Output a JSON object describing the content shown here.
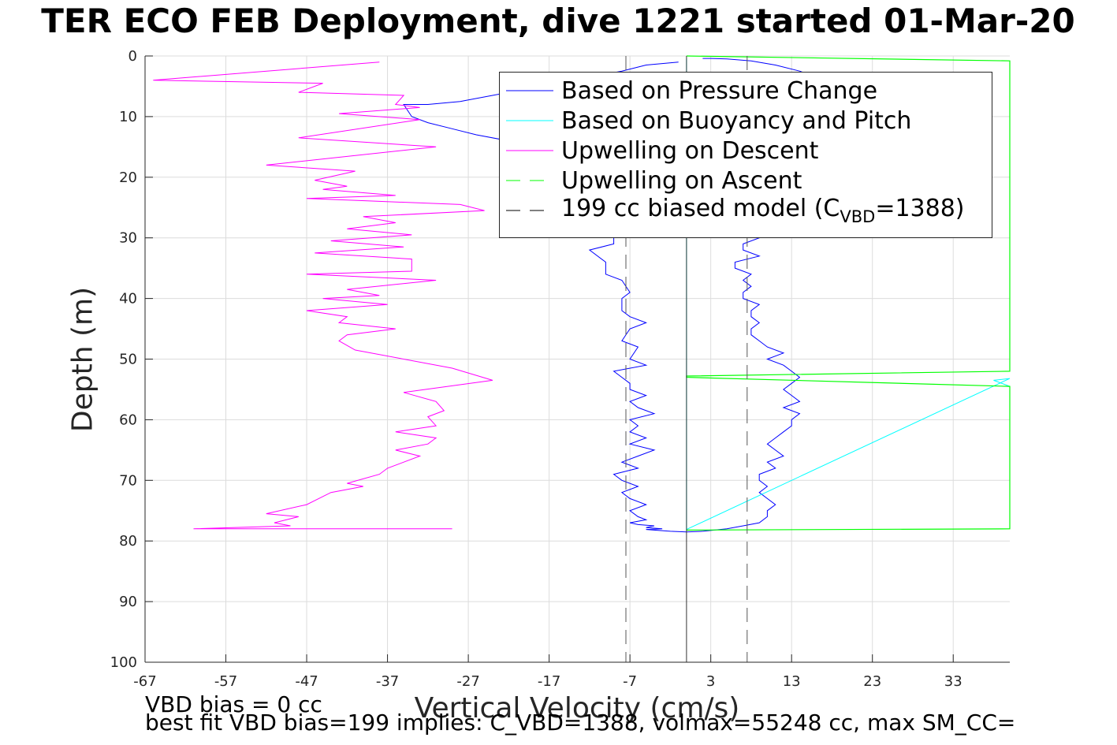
{
  "title": "TER ECO FEB Deployment, dive 1221 started 01-Mar-20",
  "footer_lines": [
    "VBD bias = 0 cc",
    "best fit VBD bias=199 implies: C_VBD=1388, volmax=55248 cc, max SM_CC="
  ],
  "colors": {
    "pressure": "#0000ff",
    "buoyancy": "#00ffff",
    "descent": "#ff00ff",
    "ascent": "#00ff00",
    "model": "#000000"
  },
  "chart_data": {
    "type": "line",
    "title": "TER ECO FEB Deployment, dive 1221 started 01-Mar-20",
    "xlabel": "Vertical Velocity (cm/s)",
    "ylabel": "Depth (m)",
    "xlim": [
      -67,
      40
    ],
    "ylim": [
      100,
      0
    ],
    "y_reversed": true,
    "xticks": [
      -67,
      -57,
      -47,
      -37,
      -27,
      -17,
      -7,
      3,
      13,
      23,
      33
    ],
    "yticks": [
      0,
      10,
      20,
      30,
      40,
      50,
      60,
      70,
      80,
      90,
      100
    ],
    "grid": true,
    "legend_position": "top-right",
    "legend": [
      {
        "id": "pressure",
        "prefix": "Based on Pressure Change",
        "style": "solid"
      },
      {
        "id": "buoyancy",
        "prefix": "Based on Buoyancy and Pitch",
        "style": "solid"
      },
      {
        "id": "descent",
        "prefix": "Upwelling on Descent",
        "style": "solid"
      },
      {
        "id": "ascent",
        "prefix": "Upwelling on Ascent",
        "style": "dashed"
      },
      {
        "id": "model",
        "prefix": "199 cc biased model (C",
        "sub": "VBD",
        "suffix": "=1388)",
        "style": "dashed"
      }
    ],
    "series": [
      {
        "id": "pressure",
        "name": "Based on Pressure Change",
        "x": [
          -1,
          -5,
          -8,
          -12,
          -16,
          -20,
          -24,
          -28,
          -32,
          -35,
          -34,
          -32,
          -29,
          -26,
          -22,
          -18,
          -14,
          -11,
          -9,
          -9,
          -12,
          -10,
          -10,
          -8,
          -7,
          -8,
          -8,
          -7,
          -5,
          -7,
          -8,
          -6,
          -7,
          -5,
          -9,
          -8,
          -7,
          -7,
          -5,
          -7,
          -6,
          -4,
          -7,
          -6,
          -7,
          -5,
          -7,
          -4,
          -6,
          -8,
          -6,
          -9,
          -8,
          -6,
          -8,
          -7,
          -5,
          -7,
          -6,
          -5,
          -7,
          -6,
          -4,
          -5,
          -3,
          -5,
          -3,
          -2,
          0,
          2
        ],
        "y": [
          1,
          1.5,
          2.5,
          3.5,
          4.5,
          5.5,
          6.5,
          7.5,
          8,
          8,
          10,
          11,
          12,
          13,
          14,
          15,
          20,
          25,
          28,
          31,
          32,
          34,
          36,
          37,
          39,
          40,
          42,
          43,
          44,
          45,
          47,
          48,
          50,
          51,
          52,
          53,
          54,
          55,
          56,
          57,
          58,
          59,
          60,
          61,
          62,
          63,
          64,
          65,
          66,
          67,
          68,
          69,
          70,
          71,
          72,
          73,
          74,
          75,
          76,
          76.5,
          77,
          77.3,
          77.5,
          77.8,
          78,
          78.1,
          78.3,
          78.4,
          78.5,
          78.4
        ]
      },
      {
        "id": "pressure_ascent",
        "name": "",
        "x": [
          2,
          5,
          7,
          9,
          10,
          10,
          11,
          10,
          9,
          10,
          9,
          9,
          11,
          10,
          12,
          11,
          10,
          11,
          12,
          13,
          13,
          14,
          12,
          14,
          13,
          12,
          13,
          14,
          13,
          12,
          10,
          12,
          10,
          9,
          8,
          8,
          9,
          8,
          8,
          9,
          7,
          7,
          8,
          7,
          8,
          6,
          6,
          9,
          7,
          7,
          9,
          8,
          7,
          7,
          8,
          9,
          10,
          12,
          14,
          16,
          18,
          19,
          21,
          22,
          23,
          21,
          20,
          19,
          17,
          14,
          11,
          8,
          5,
          3,
          2
        ],
        "y": [
          78.4,
          78,
          77.5,
          77,
          76,
          75,
          74,
          73,
          72,
          71,
          70,
          69,
          68,
          67,
          66,
          65,
          64,
          63,
          62,
          61,
          60,
          59,
          58,
          57,
          56,
          55,
          54,
          53,
          52,
          51,
          50,
          49,
          48,
          47,
          46,
          45,
          44,
          43,
          42,
          41,
          40,
          39,
          38,
          37,
          36,
          35,
          34,
          33,
          32,
          31,
          30,
          29,
          28,
          27,
          26,
          25,
          24,
          23,
          22,
          21,
          20,
          18,
          16,
          14,
          12,
          10,
          8,
          6,
          4,
          2.5,
          1.5,
          0.8,
          0.5,
          0.4,
          0.4
        ]
      },
      {
        "id": "buoyancy",
        "name": "Based on Buoyancy and Pitch",
        "x": [
          0,
          0,
          0,
          0,
          0,
          0,
          0,
          0,
          0,
          0,
          0,
          0,
          40,
          38,
          40
        ],
        "y": [
          0.4,
          10,
          20,
          30,
          40,
          50,
          52.8,
          60,
          70,
          78.2,
          78.2,
          78.1,
          53.2,
          53.5,
          54.5
        ]
      },
      {
        "id": "descent",
        "name": "Upwelling on Descent",
        "x": [
          -38,
          -66,
          -45,
          -48,
          -35,
          -36,
          -33,
          -43,
          -33,
          -48,
          -31,
          -52,
          -41,
          -46,
          -42,
          -45,
          -36,
          -47,
          -28,
          -25,
          -40,
          -36,
          -42,
          -34,
          -44,
          -35,
          -46,
          -34,
          -34,
          -47,
          -31,
          -42,
          -38,
          -45,
          -37,
          -47,
          -42,
          -43,
          -36,
          -42,
          -43,
          -41,
          -29,
          -24,
          -35,
          -31,
          -30,
          -32,
          -31,
          -36,
          -31,
          -32,
          -36,
          -33,
          -37,
          -38,
          -42,
          -40,
          -44,
          -47,
          -52,
          -48,
          -51,
          -49,
          -61,
          -29
        ],
        "y": [
          1,
          4,
          4.5,
          6,
          6.5,
          8,
          8.5,
          9.5,
          10.5,
          13.5,
          15,
          18,
          19,
          20.5,
          21.5,
          22,
          23,
          23.5,
          24.5,
          25.5,
          26.5,
          27.5,
          28.5,
          29.5,
          30.5,
          31.5,
          32.5,
          33.5,
          35.5,
          36,
          37,
          38.5,
          39.5,
          40,
          41,
          42,
          43,
          44,
          45,
          46,
          47,
          48.5,
          51.5,
          53.5,
          55.5,
          57,
          58.5,
          59.5,
          61,
          62,
          63,
          64,
          65,
          66,
          68,
          69,
          70.5,
          71,
          72,
          74,
          75.5,
          76,
          77,
          77.5,
          78,
          78
        ]
      },
      {
        "id": "ascent",
        "name": "Upwelling on Ascent",
        "x": [
          0,
          40,
          40,
          0,
          0,
          40,
          40,
          40,
          40,
          0
        ],
        "y": [
          78.2,
          78,
          54.5,
          53,
          52.8,
          52,
          44,
          42,
          0.8,
          0
        ]
      },
      {
        "id": "model_left",
        "name": "199 cc biased model (CVBD=1388)",
        "x": [
          -7.5,
          -7.5
        ],
        "y": [
          0,
          100
        ]
      },
      {
        "id": "model_right",
        "name": "",
        "x": [
          7.5,
          7.5
        ],
        "y": [
          0,
          100
        ]
      },
      {
        "id": "zero_line",
        "name": "",
        "x": [
          0,
          0
        ],
        "y": [
          0,
          100
        ]
      }
    ]
  }
}
